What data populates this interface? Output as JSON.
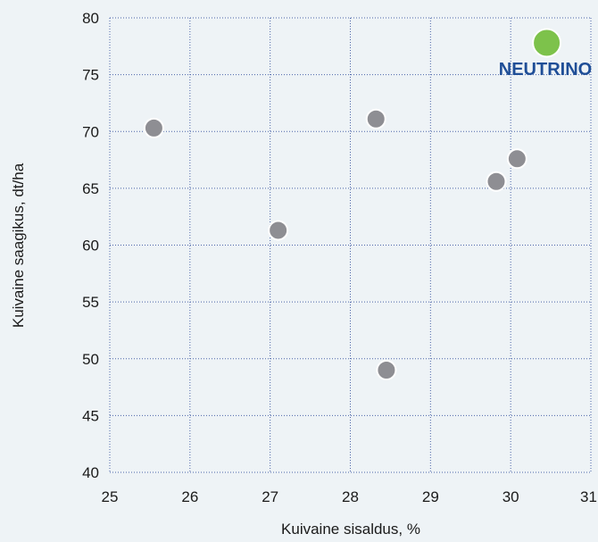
{
  "chart_data": {
    "type": "scatter",
    "xlabel": "Kuivaine sisaldus, %",
    "ylabel": "Kuivaine saagikus, dt/ha",
    "xlim": [
      25,
      31
    ],
    "ylim": [
      40,
      80
    ],
    "xticks": [
      "25",
      "26",
      "27",
      "28",
      "29",
      "30",
      "31"
    ],
    "yticks": [
      "40",
      "45",
      "50",
      "55",
      "60",
      "65",
      "70",
      "75",
      "80"
    ],
    "grid": true,
    "points": [
      {
        "x": 25.55,
        "y": 70.3
      },
      {
        "x": 27.1,
        "y": 61.3
      },
      {
        "x": 28.32,
        "y": 71.1
      },
      {
        "x": 28.45,
        "y": 49.0
      },
      {
        "x": 29.82,
        "y": 65.6
      },
      {
        "x": 30.08,
        "y": 67.6
      }
    ],
    "highlight": {
      "label": "NEUTRINO",
      "x": 30.45,
      "y": 77.8
    },
    "colors": {
      "point": "#8e8e93",
      "highlight": "#7dc24b",
      "highlight_label": "#1f4e97",
      "grid": "#4a64a8",
      "background": "#eef3f6"
    }
  }
}
